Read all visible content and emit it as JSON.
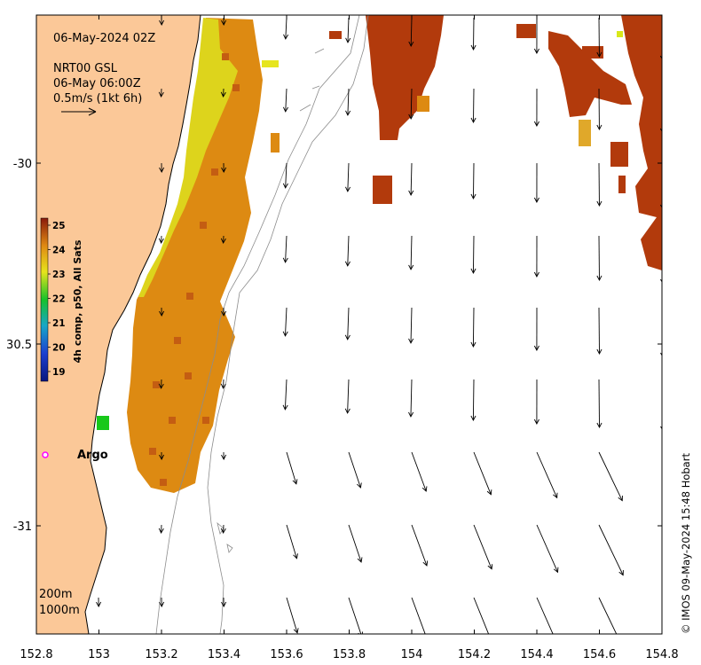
{
  "header": {
    "date": "06-May-2024 02Z",
    "product": "NRT00 GSL",
    "current_time": "06-May 06:00Z",
    "scale_label": "0.5m/s (1kt 6h)"
  },
  "axes": {
    "x_ticks": [
      "152.8",
      "153",
      "153.2",
      "153.4",
      "153.6",
      "153.8",
      "154",
      "154.2",
      "154.4",
      "154.6",
      "154.8"
    ],
    "y_ticks": [
      "-30",
      "30.5",
      "-31"
    ]
  },
  "colorbar": {
    "title": "4h comp, p50, All Sats",
    "ticks": [
      "25",
      "24",
      "23",
      "22",
      "21",
      "20",
      "19"
    ]
  },
  "bathymetry": {
    "label_200": "200m",
    "label_1000": "1000m"
  },
  "argo": {
    "label": "Argo",
    "marker_color": "#ff00ff"
  },
  "credit": "© IMOS 09-May-2024 15:48 Hobart",
  "colors": {
    "land": "#fbc898",
    "warm_sst": "#dd8a12",
    "hot_sst": "#b23a0c",
    "cool_sst": "#ddd41c",
    "green_pixel": "#18c81a"
  }
}
